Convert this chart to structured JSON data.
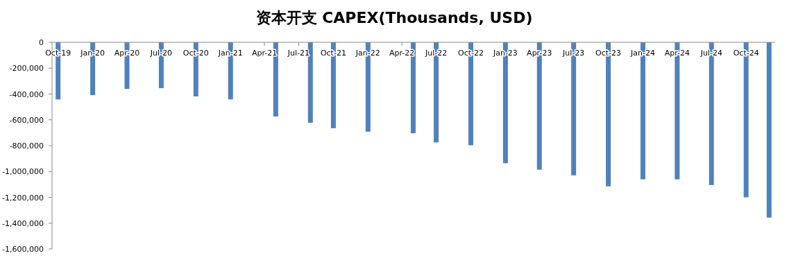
{
  "chart_data": {
    "type": "bar",
    "title": "资本开支 CAPEX(Thousands, USD)",
    "x": [
      "2019-10",
      "2020-01",
      "2020-04",
      "2020-07",
      "2020-10",
      "2021-01",
      "2021-05",
      "2021-08",
      "2021-10",
      "2022-01",
      "2022-05",
      "2022-07",
      "2022-10",
      "2023-01",
      "2023-04",
      "2023-07",
      "2023-10",
      "2024-01",
      "2024-04",
      "2024-07",
      "2024-10",
      "2024-12"
    ],
    "values": [
      -442000,
      -409000,
      -361000,
      -355000,
      -419000,
      -442000,
      -574000,
      -623000,
      -665000,
      -692000,
      -704000,
      -775000,
      -797000,
      -936000,
      -986000,
      -1030000,
      -1115000,
      -1061000,
      -1061000,
      -1105000,
      -1200000,
      -1357000
    ],
    "color": "#4f81bd",
    "xlim": [
      "2019-09-15",
      "2024-12-17"
    ],
    "xticks": [
      {
        "value": "2019-10",
        "label": "Oct-19"
      },
      {
        "value": "2020-01",
        "label": "Jan-20"
      },
      {
        "value": "2020-04",
        "label": "Apr-20"
      },
      {
        "value": "2020-07",
        "label": "Jul-20"
      },
      {
        "value": "2020-10",
        "label": "Oct-20"
      },
      {
        "value": "2021-01",
        "label": "Jan-21"
      },
      {
        "value": "2021-04",
        "label": "Apr-21"
      },
      {
        "value": "2021-07",
        "label": "Jul-21"
      },
      {
        "value": "2021-10",
        "label": "Oct-21"
      },
      {
        "value": "2022-01",
        "label": "Jan-22"
      },
      {
        "value": "2022-04",
        "label": "Apr-22"
      },
      {
        "value": "2022-07",
        "label": "Jul-22"
      },
      {
        "value": "2022-10",
        "label": "Oct-22"
      },
      {
        "value": "2023-01",
        "label": "Jan-23"
      },
      {
        "value": "2023-04",
        "label": "Apr-23"
      },
      {
        "value": "2023-07",
        "label": "Jul-23"
      },
      {
        "value": "2023-10",
        "label": "Oct-23"
      },
      {
        "value": "2024-01",
        "label": "Jan-24"
      },
      {
        "value": "2024-04",
        "label": "Apr-24"
      },
      {
        "value": "2024-07",
        "label": "Jul-24"
      },
      {
        "value": "2024-10",
        "label": "Oct-24"
      }
    ],
    "ylim": [
      -1600000,
      0
    ],
    "yticks": [
      {
        "value": 0,
        "label": "0"
      },
      {
        "value": -200000,
        "label": "-200,000"
      },
      {
        "value": -400000,
        "label": "-400,000"
      },
      {
        "value": -600000,
        "label": "-600,000"
      },
      {
        "value": -800000,
        "label": "-800,000"
      },
      {
        "value": -1000000,
        "label": "-1,000,000"
      },
      {
        "value": -1200000,
        "label": "-1,200,000"
      },
      {
        "value": -1400000,
        "label": "-1,400,000"
      },
      {
        "value": -1600000,
        "label": "-1,600,000"
      }
    ],
    "grid": false
  }
}
